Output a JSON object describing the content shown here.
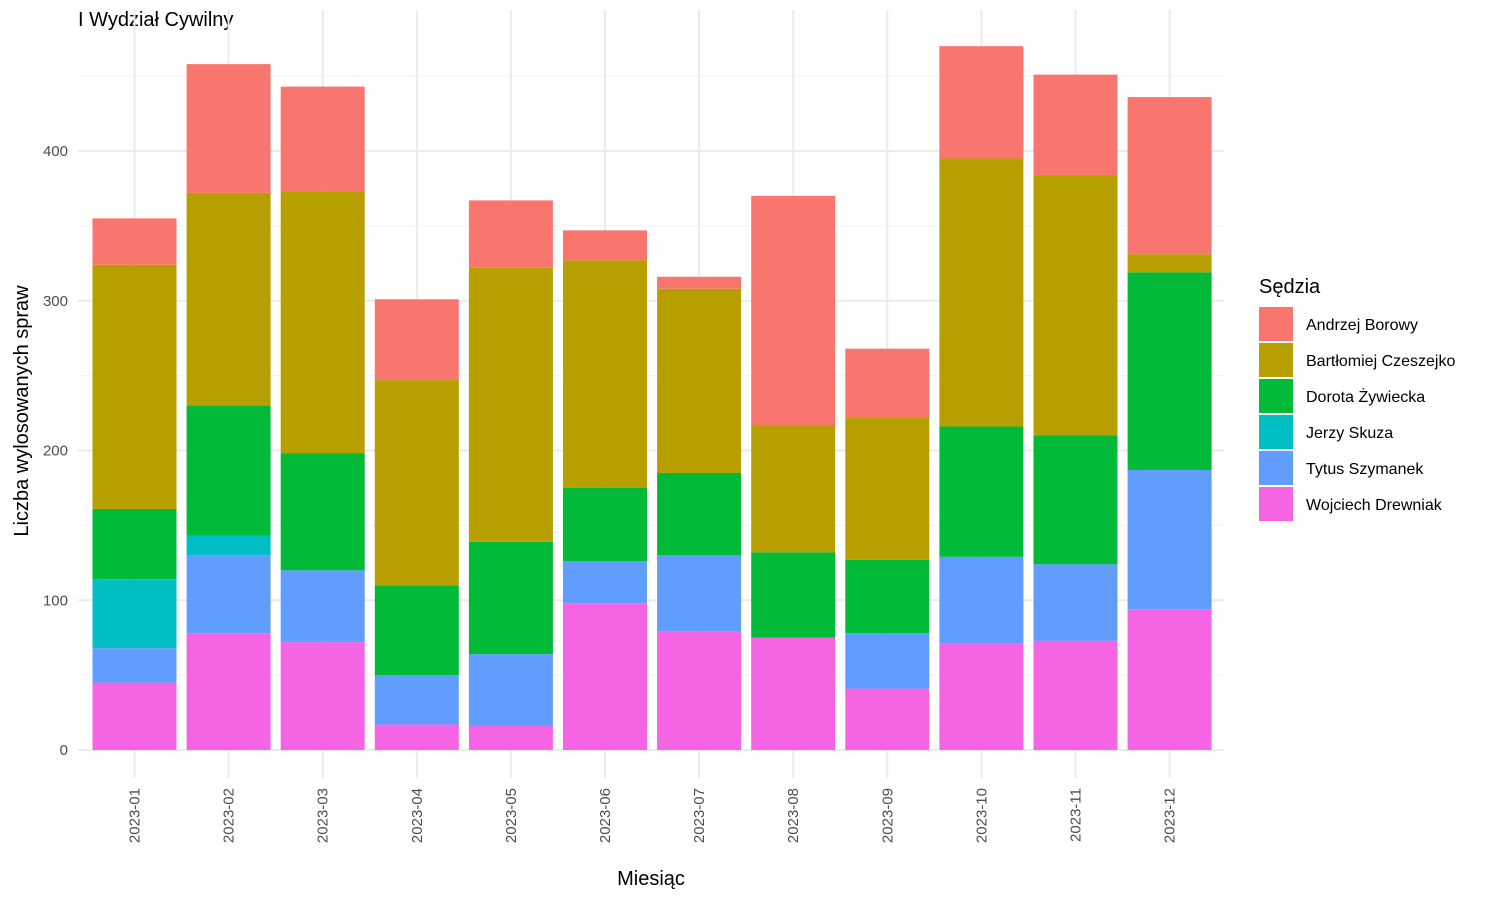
{
  "chart_data": {
    "type": "bar",
    "stacked": true,
    "title": "I Wydział Cywilny",
    "xlabel": "Miesiąc",
    "ylabel": "Liczba wylosowanych spraw",
    "ylim": [
      0,
      480
    ],
    "yticks": [
      0,
      100,
      200,
      300,
      400
    ],
    "grid": true,
    "legend_title": "Sędzia",
    "legend_position": "right",
    "categories": [
      "2023-01",
      "2023-02",
      "2023-03",
      "2023-04",
      "2023-05",
      "2023-06",
      "2023-07",
      "2023-08",
      "2023-09",
      "2023-10",
      "2023-11",
      "2023-12"
    ],
    "series": [
      {
        "name": "Andrzej Borowy",
        "color": "#F8766D",
        "values": [
          31,
          86,
          70,
          54,
          45,
          20,
          8,
          153,
          46,
          75,
          67,
          105
        ]
      },
      {
        "name": "Bartłomiej Czeszejko",
        "color": "#B79F00",
        "values": [
          163,
          142,
          175,
          137,
          183,
          152,
          123,
          85,
          95,
          179,
          174,
          12
        ]
      },
      {
        "name": "Dorota Żywiecka",
        "color": "#00BA38",
        "values": [
          47,
          87,
          78,
          60,
          75,
          49,
          55,
          57,
          49,
          87,
          86,
          132
        ]
      },
      {
        "name": "Jerzy Skuza",
        "color": "#00BFC4",
        "values": [
          46,
          13,
          0,
          0,
          0,
          0,
          0,
          0,
          0,
          0,
          0,
          0
        ]
      },
      {
        "name": "Tytus Szymanek",
        "color": "#619CFF",
        "values": [
          23,
          52,
          48,
          33,
          48,
          28,
          51,
          0,
          37,
          58,
          51,
          93
        ]
      },
      {
        "name": "Wojciech Drewniak",
        "color": "#F564E3",
        "values": [
          45,
          78,
          72,
          17,
          16,
          98,
          79,
          75,
          41,
          71,
          73,
          94
        ]
      }
    ]
  }
}
